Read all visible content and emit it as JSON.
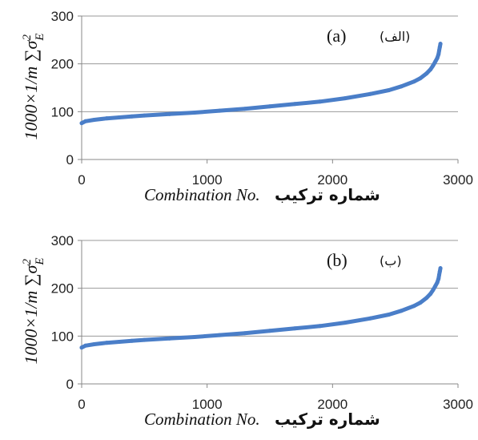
{
  "chart_data": [
    {
      "type": "line",
      "panel_label": "(a)",
      "panel_label_fa": "(الف)",
      "xlabel": "Combination No.",
      "xlabel_fa": "شماره ترکیب",
      "ylabel": "1000×1/m ∑σE²",
      "xlim": [
        0,
        3000
      ],
      "ylim": [
        0,
        300
      ],
      "xticks": [
        "0",
        "1000",
        "2000",
        "3000"
      ],
      "yticks": [
        "0",
        "100",
        "200",
        "300"
      ],
      "grid": "horizontal",
      "color": "#4a7ec8",
      "series": [
        {
          "x": [
            0,
            30,
            100,
            200,
            300,
            400,
            500,
            700,
            900,
            1100,
            1300,
            1500,
            1700,
            1900,
            2100,
            2300,
            2450,
            2550,
            2650,
            2700,
            2750,
            2780,
            2800,
            2820,
            2835,
            2845,
            2850,
            2855,
            2860
          ],
          "values": [
            76,
            80,
            83,
            86,
            88,
            90,
            92,
            95,
            98,
            102,
            106,
            111,
            116,
            121,
            128,
            137,
            145,
            153,
            163,
            170,
            180,
            188,
            196,
            205,
            212,
            220,
            228,
            235,
            242
          ]
        }
      ]
    },
    {
      "type": "line",
      "panel_label": "(b)",
      "panel_label_fa": "(ب)",
      "xlabel": "Combination No.",
      "xlabel_fa": "شماره ترکیب",
      "ylabel": "1000×1/m ∑σE²",
      "xlim": [
        0,
        3000
      ],
      "ylim": [
        0,
        300
      ],
      "xticks": [
        "0",
        "1000",
        "2000",
        "3000"
      ],
      "yticks": [
        "0",
        "100",
        "200",
        "300"
      ],
      "grid": "horizontal",
      "color": "#4a7ec8",
      "series": [
        {
          "x": [
            0,
            30,
            100,
            200,
            300,
            400,
            500,
            700,
            900,
            1100,
            1300,
            1500,
            1700,
            1900,
            2100,
            2300,
            2450,
            2550,
            2650,
            2700,
            2750,
            2780,
            2800,
            2820,
            2835,
            2845,
            2850,
            2855,
            2860
          ],
          "values": [
            76,
            80,
            83,
            86,
            88,
            90,
            92,
            95,
            98,
            102,
            106,
            111,
            116,
            121,
            128,
            137,
            145,
            153,
            163,
            170,
            180,
            188,
            196,
            205,
            212,
            220,
            228,
            235,
            242
          ]
        }
      ]
    }
  ]
}
